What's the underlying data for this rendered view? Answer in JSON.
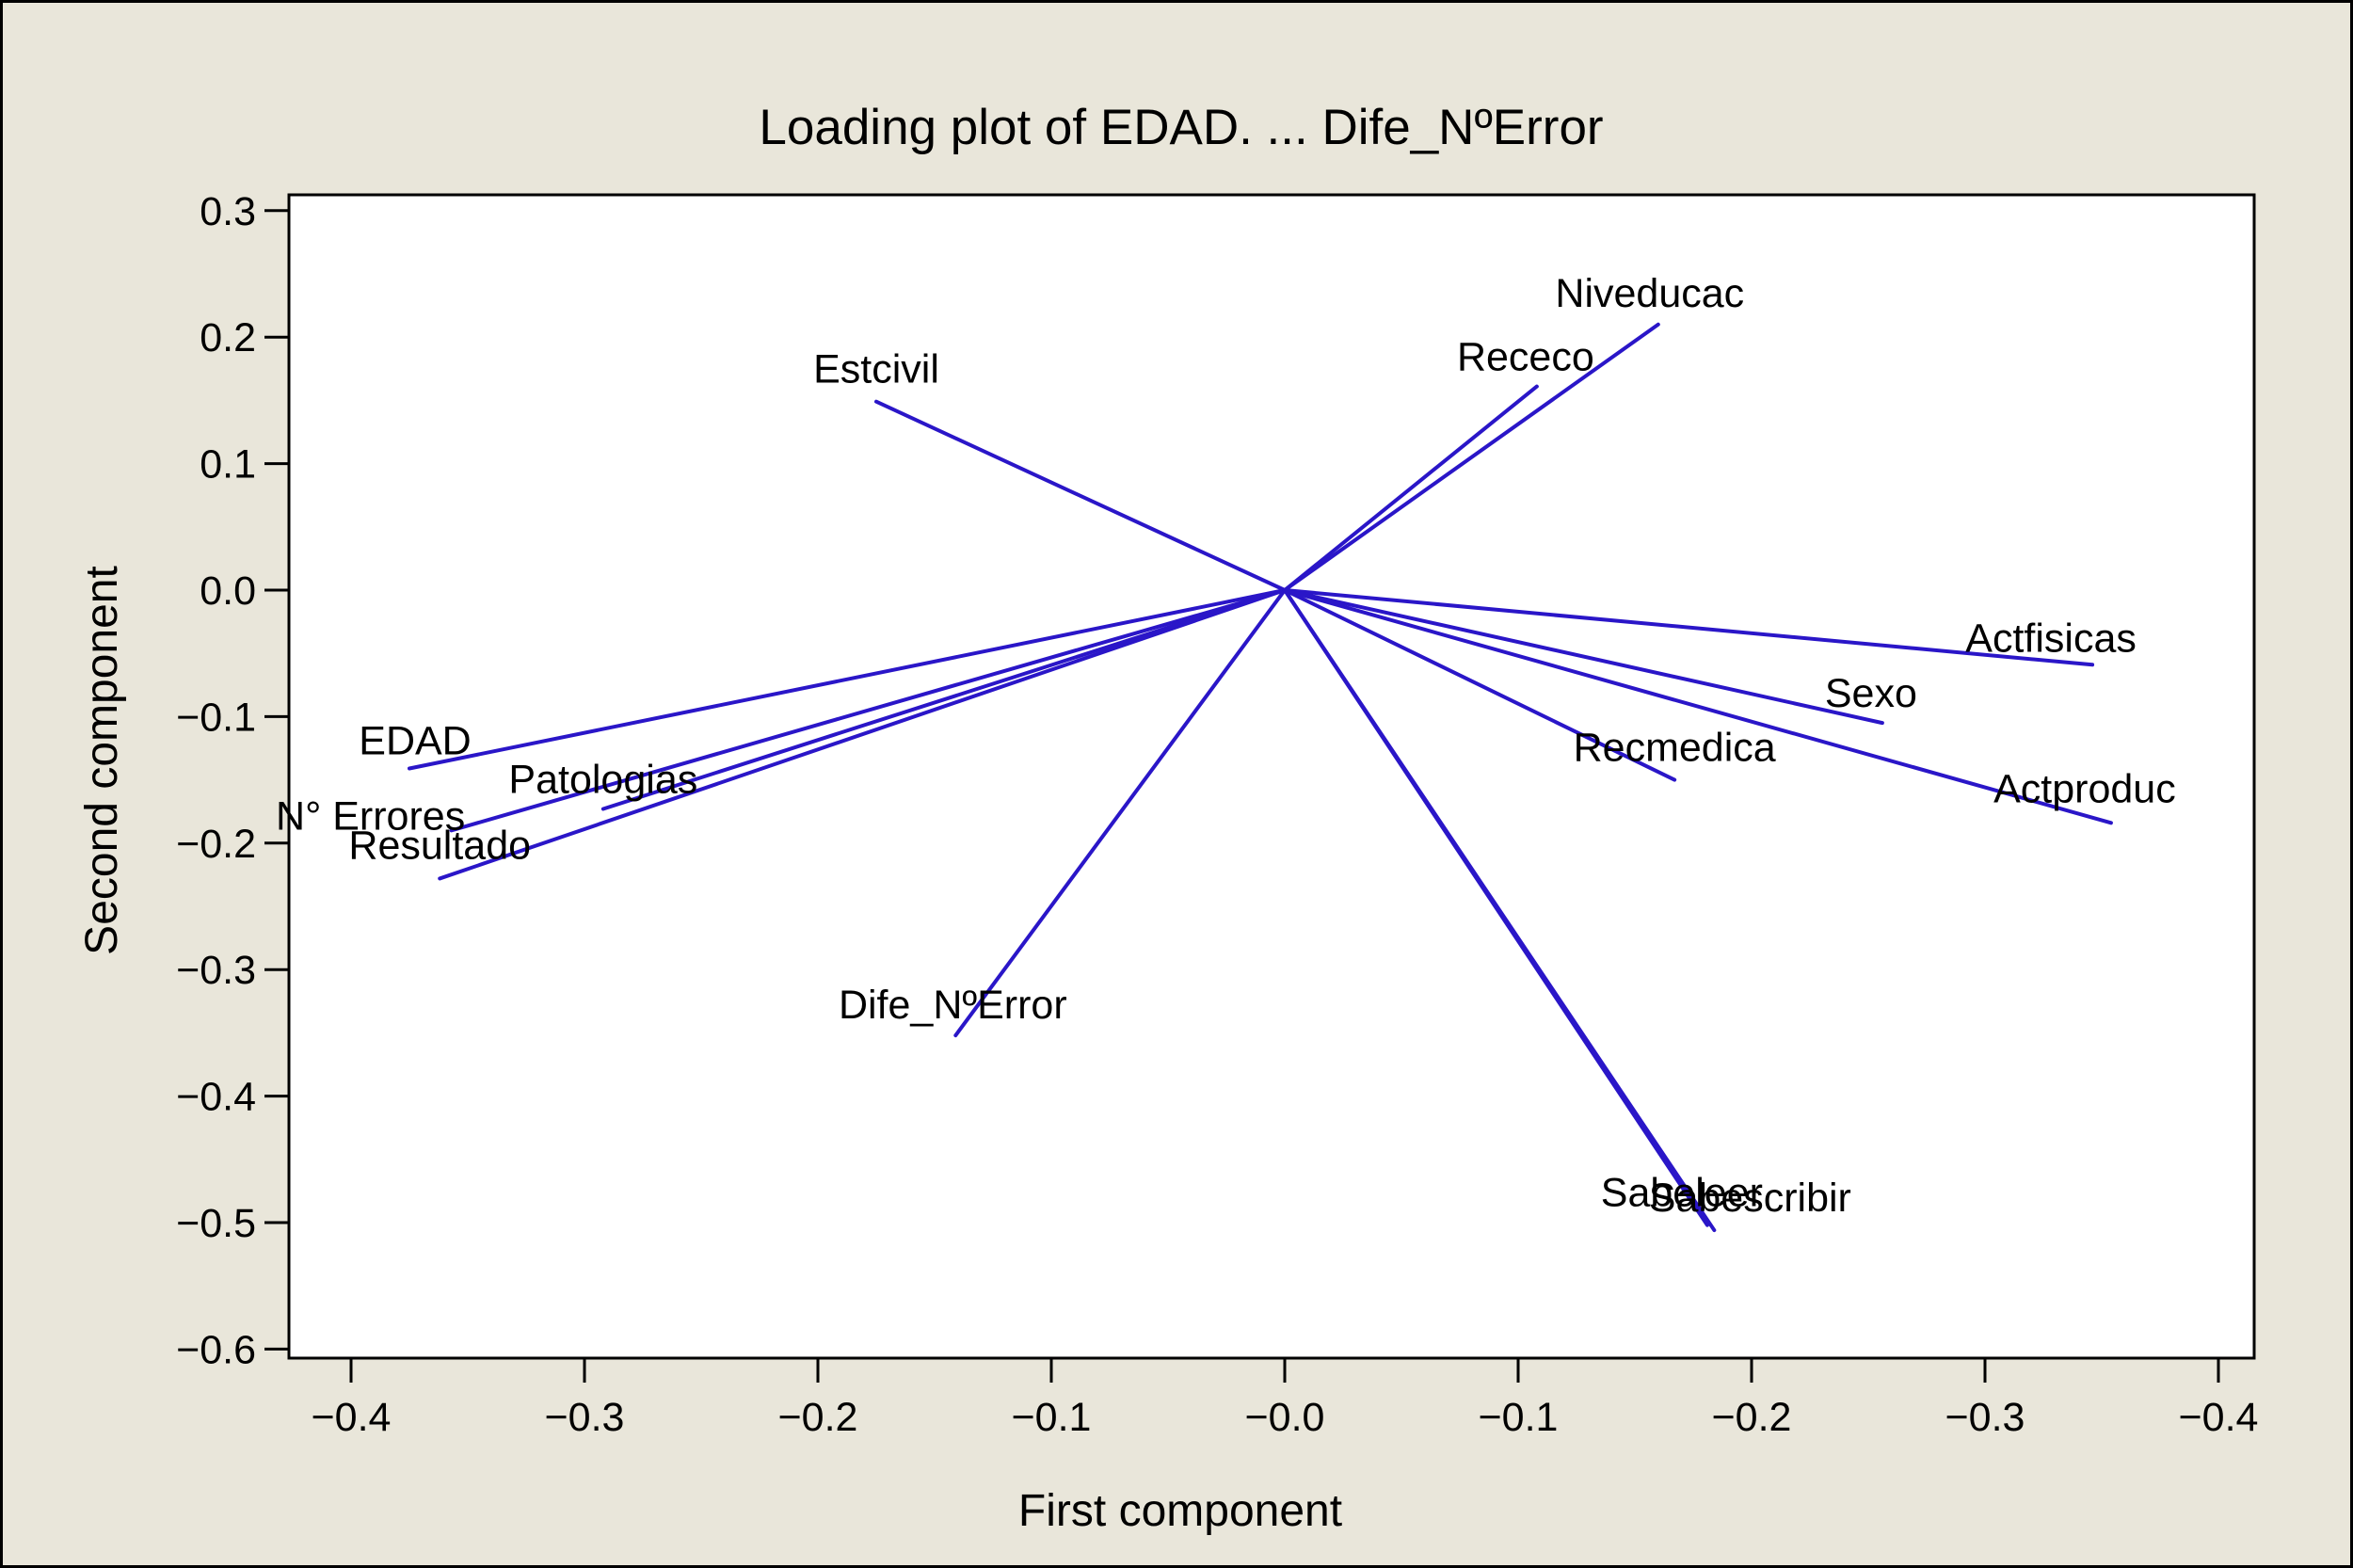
{
  "window": {
    "title": "Loading plot of EDAD. ... Dife_NºError"
  },
  "chart_data": {
    "type": "line",
    "subtype": "pca-loading-vector-plot",
    "title": "Loading plot of EDAD. ... Dife_NºError",
    "xlabel": "First component",
    "ylabel": "Second component",
    "xlim": [
      -0.427,
      0.415
    ],
    "ylim": [
      -0.608,
      0.313
    ],
    "grid": false,
    "legend": "none",
    "origin": [
      0,
      0
    ],
    "x_ticks": [
      {
        "position": -0.4,
        "label": "−0.4"
      },
      {
        "position": -0.3,
        "label": "−0.3"
      },
      {
        "position": -0.2,
        "label": "−0.2"
      },
      {
        "position": -0.1,
        "label": "−0.1"
      },
      {
        "position": 0.0,
        "label": "−0.0"
      },
      {
        "position": 0.1,
        "label": "−0.1"
      },
      {
        "position": 0.2,
        "label": "−0.2"
      },
      {
        "position": 0.3,
        "label": "−0.3"
      },
      {
        "position": 0.4,
        "label": "−0.4"
      }
    ],
    "y_ticks": [
      {
        "position": 0.3,
        "label": "0.3"
      },
      {
        "position": 0.2,
        "label": "0.2"
      },
      {
        "position": 0.1,
        "label": "0.1"
      },
      {
        "position": 0.0,
        "label": "0.0"
      },
      {
        "position": -0.1,
        "label": "−0.1"
      },
      {
        "position": -0.2,
        "label": "−0.2"
      },
      {
        "position": -0.3,
        "label": "−0.3"
      },
      {
        "position": -0.4,
        "label": "−0.4"
      },
      {
        "position": -0.5,
        "label": "−0.5"
      },
      {
        "position": -0.6,
        "label": "−0.6"
      }
    ],
    "vectors": [
      {
        "name": "EDAD",
        "first_component": -0.375,
        "second_component": -0.141
      },
      {
        "name": "Patologias",
        "first_component": -0.292,
        "second_component": -0.173
      },
      {
        "name": "N° Errores",
        "first_component": -0.357,
        "second_component": -0.19
      },
      {
        "name": "Resultado",
        "first_component": -0.362,
        "second_component": -0.228
      },
      {
        "name": "Estcivil",
        "first_component": -0.175,
        "second_component": 0.149
      },
      {
        "name": "Dife_NºError",
        "first_component": -0.141,
        "second_component": -0.352
      },
      {
        "name": "Niveducac",
        "first_component": 0.16,
        "second_component": 0.21
      },
      {
        "name": "Receco",
        "first_component": 0.108,
        "second_component": 0.161
      },
      {
        "name": "Actfisicas",
        "first_component": 0.346,
        "second_component": -0.059
      },
      {
        "name": "Sexo",
        "first_component": 0.256,
        "second_component": -0.105
      },
      {
        "name": "Recmedica",
        "first_component": 0.167,
        "second_component": -0.15
      },
      {
        "name": "Actproduc",
        "first_component": 0.354,
        "second_component": -0.184
      },
      {
        "name": "Sabeleer",
        "first_component": 0.181,
        "second_component": -0.502
      },
      {
        "name": "Sabescribir",
        "first_component": 0.184,
        "second_component": -0.506
      }
    ],
    "colors": {
      "vector": "#2a16c8",
      "background": "#e9e6da",
      "plot_background": "#ffffff",
      "frame": "#000000",
      "text": "#000000"
    }
  }
}
